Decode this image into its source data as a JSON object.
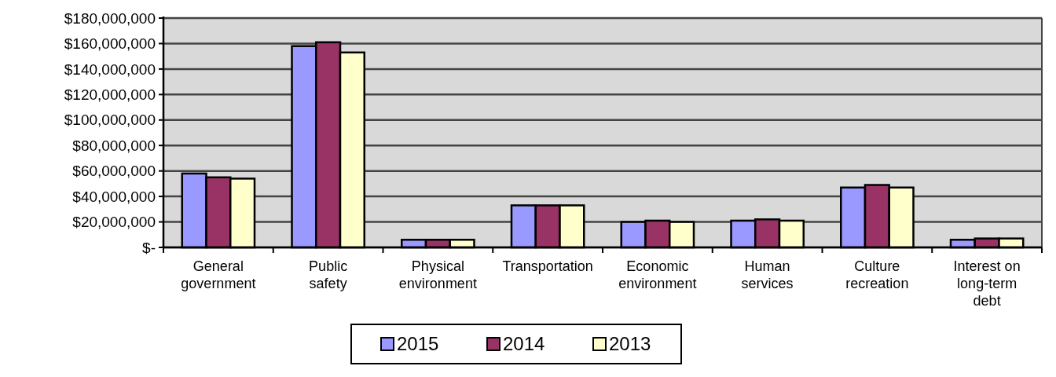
{
  "chart_data": {
    "type": "bar",
    "categories": [
      "General government",
      "Public safety",
      "Physical environment",
      "Transportation",
      "Economic environment",
      "Human services",
      "Culture recreation",
      "Interest on long-term debt"
    ],
    "series": [
      {
        "name": "2015",
        "color": "#9999ff",
        "values": [
          58000000,
          158000000,
          6000000,
          33000000,
          20000000,
          21000000,
          47000000,
          6000000
        ]
      },
      {
        "name": "2014",
        "color": "#993366",
        "values": [
          55000000,
          161000000,
          6000000,
          33000000,
          21000000,
          22000000,
          49000000,
          7000000
        ]
      },
      {
        "name": "2013",
        "color": "#ffffcc",
        "values": [
          54000000,
          153000000,
          6000000,
          33000000,
          20000000,
          21000000,
          47000000,
          7000000
        ]
      }
    ],
    "ylim": [
      0,
      180000000
    ],
    "yticks": [
      {
        "value": 0,
        "label": "$-"
      },
      {
        "value": 20000000,
        "label": "$20,000,000"
      },
      {
        "value": 40000000,
        "label": "$40,000,000"
      },
      {
        "value": 60000000,
        "label": "$60,000,000"
      },
      {
        "value": 80000000,
        "label": "$80,000,000"
      },
      {
        "value": 100000000,
        "label": "$100,000,000"
      },
      {
        "value": 120000000,
        "label": "$120,000,000"
      },
      {
        "value": 140000000,
        "label": "$140,000,000"
      },
      {
        "value": 160000000,
        "label": "$160,000,000"
      },
      {
        "value": 180000000,
        "label": "$180,000,000"
      }
    ],
    "grid": "y",
    "legend": "bottom"
  }
}
